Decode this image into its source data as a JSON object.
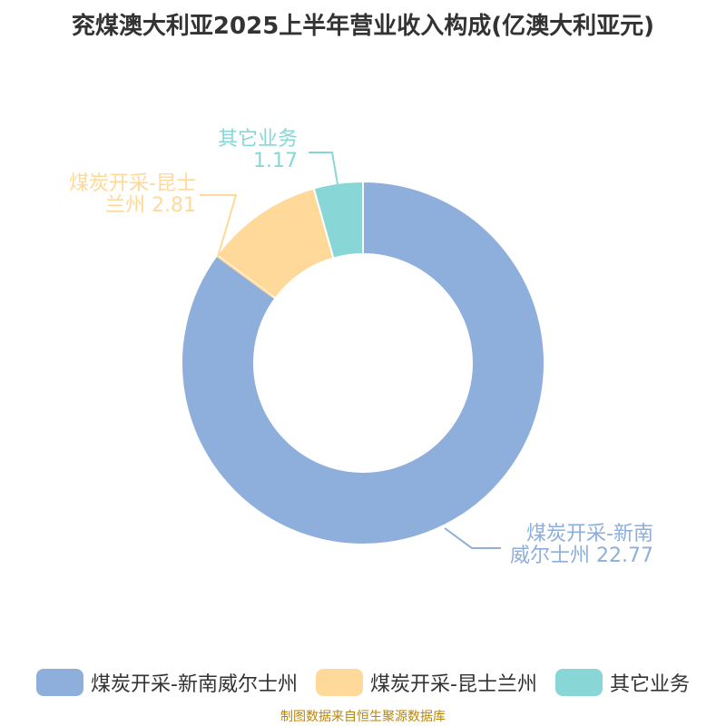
{
  "title": "兖煤澳大利亚2025上半年营业收入构成(亿澳大利亚元)",
  "source": "制图数据来自恒生聚源数据库",
  "chart_data": {
    "type": "pie",
    "donut": true,
    "slices": [
      {
        "name": "煤炭开采-新南威尔士州",
        "value": 22.77,
        "color": "#8eaedb",
        "label_lines": [
          "煤炭开采-新南",
          "威尔士州 22.77"
        ]
      },
      {
        "name": "煤炭开采-昆士兰州",
        "value": 2.81,
        "color": "#ffd99a",
        "label_lines": [
          "煤炭开采-昆士",
          "兰州 2.81"
        ]
      },
      {
        "name": "其它业务",
        "value": 1.17,
        "color": "#88d6d6",
        "label_lines": [
          "其它业务",
          "1.17"
        ]
      }
    ],
    "legend_position": "bottom"
  }
}
